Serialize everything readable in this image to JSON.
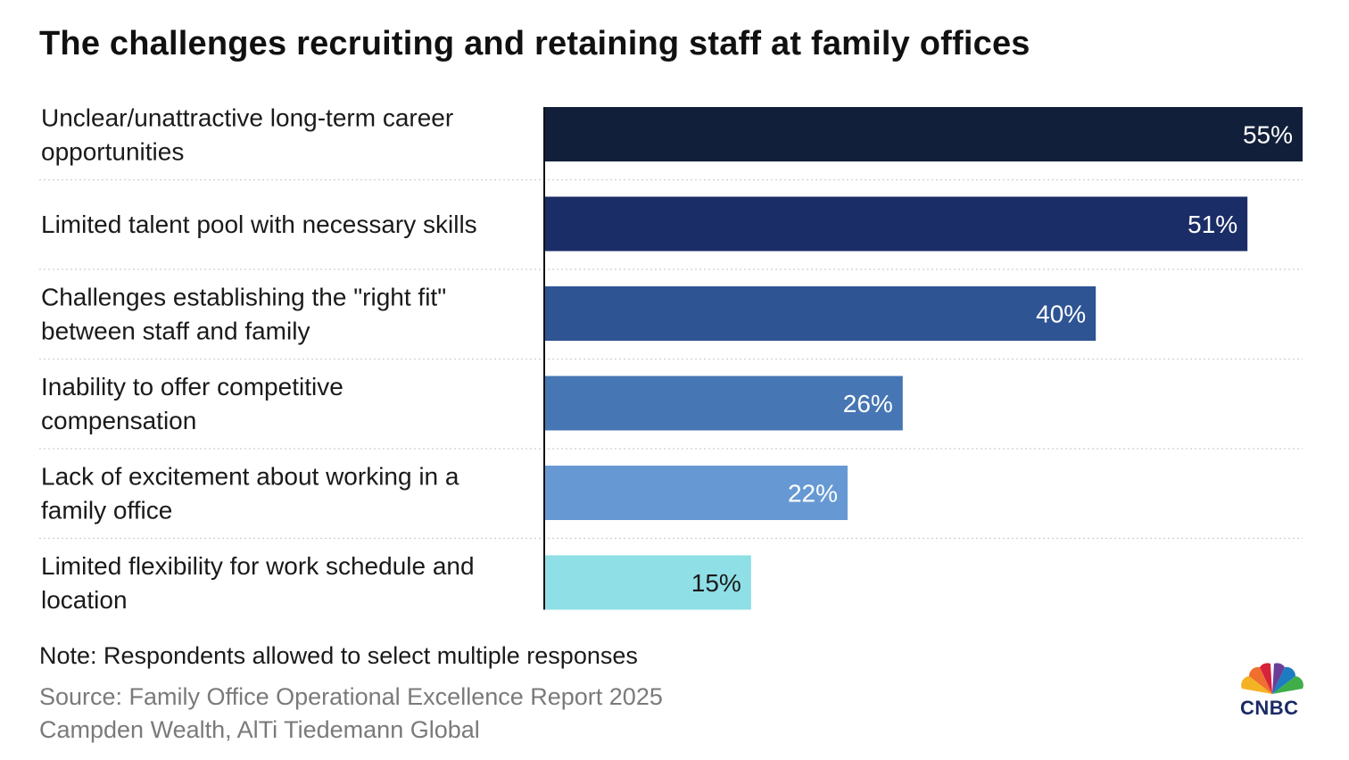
{
  "title": "The challenges recruiting and retaining staff at family offices",
  "note": "Note: Respondents allowed to select multiple responses",
  "source_line1": "Source: Family Office Operational Excellence Report 2025",
  "source_line2": "Campden Wealth, AlTi Tiedemann Global",
  "logo_text": "CNBC",
  "chart_data": {
    "type": "bar",
    "orientation": "horizontal",
    "categories": [
      [
        "Unclear/unattractive long-term career",
        "opportunities"
      ],
      [
        "Limited talent pool with necessary skills"
      ],
      [
        "Challenges establishing the \"right fit\"",
        "between staff and family"
      ],
      [
        "Inability to offer competitive",
        "compensation"
      ],
      [
        "Lack of excitement about working in a",
        "family office"
      ],
      [
        "Limited flexibility for work schedule and",
        "location"
      ]
    ],
    "values": [
      55,
      51,
      40,
      26,
      22,
      15
    ],
    "value_labels": [
      "55%",
      "51%",
      "40%",
      "26%",
      "22%",
      "15%"
    ],
    "colors": [
      "#121f3a",
      "#1b2d66",
      "#2f5494",
      "#4676b3",
      "#6699d3",
      "#8fdfe6"
    ],
    "label_colors": [
      "#ffffff",
      "#ffffff",
      "#ffffff",
      "#ffffff",
      "#ffffff",
      "#1a1a1a"
    ],
    "xlim": [
      0,
      55
    ],
    "grid": false
  }
}
